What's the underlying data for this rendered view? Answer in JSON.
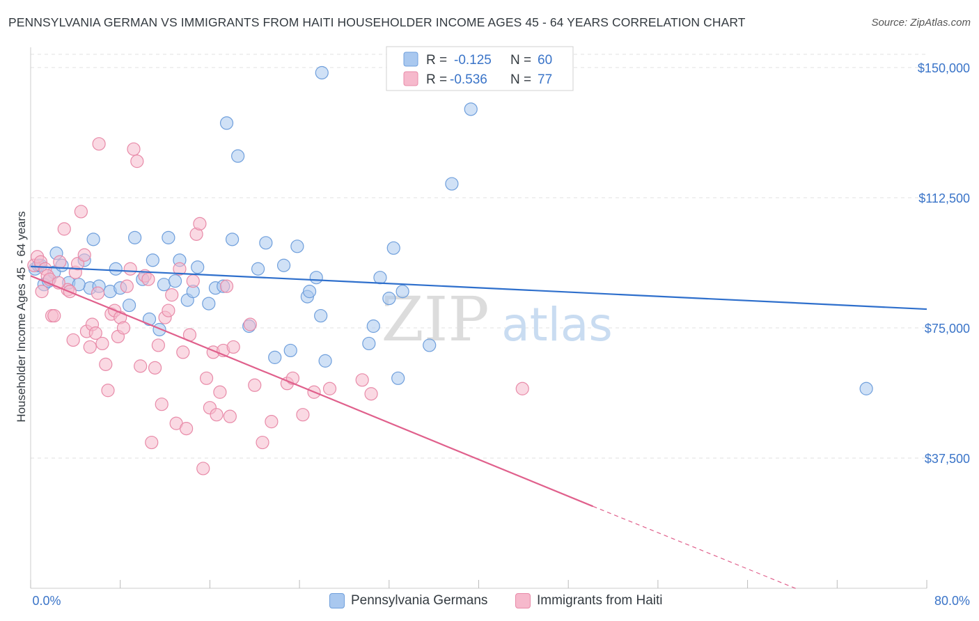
{
  "header": {
    "title": "PENNSYLVANIA GERMAN VS IMMIGRANTS FROM HAITI HOUSEHOLDER INCOME AGES 45 - 64 YEARS CORRELATION CHART",
    "source": "Source: ZipAtlas.com"
  },
  "watermark": {
    "zip": "ZIP",
    "atlas": "atlas"
  },
  "colors": {
    "blue_fill": "#a9c8ef",
    "blue_stroke": "#6f9fdc",
    "blue_line": "#2e6fcc",
    "pink_fill": "#f6b9cc",
    "pink_stroke": "#e88aa8",
    "pink_line": "#e0608c",
    "axis_text": "#3a74c8",
    "grid": "#e2e2e2"
  },
  "stats_legend": [
    {
      "r_label": "R =",
      "r_value": "-0.125",
      "n_label": "N =",
      "n_value": "60",
      "color": "blue"
    },
    {
      "r_label": "R =",
      "r_value": "-0.536",
      "n_label": "N =",
      "n_value": "77",
      "color": "pink"
    }
  ],
  "chart_data": {
    "type": "scatter",
    "title": "PENNSYLVANIA GERMAN VS IMMIGRANTS FROM HAITI HOUSEHOLDER INCOME AGES 45 - 64 YEARS CORRELATION CHART",
    "xlabel": "",
    "ylabel": "Householder Income Ages 45 - 64 years",
    "x_tick_labels": [
      "0.0%",
      "80.0%"
    ],
    "y_tick_labels": [
      "$37,500",
      "$75,000",
      "$112,500",
      "$150,000"
    ],
    "y_ticks": [
      37500,
      75000,
      112500,
      150000
    ],
    "xlim": [
      0,
      80
    ],
    "ylim": [
      0,
      155000
    ],
    "grid": true,
    "legend_position": "bottom",
    "series": [
      {
        "name": "Pennsylvania Germans",
        "color": "blue",
        "r": -0.125,
        "n": 60,
        "trend": {
          "x": [
            0,
            80
          ],
          "y": [
            92700,
            80400
          ]
        },
        "points": [
          [
            0.4,
            92000
          ],
          [
            0.7,
            93000
          ],
          [
            1.2,
            87500
          ],
          [
            1.6,
            88500
          ],
          [
            2.1,
            91000
          ],
          [
            2.3,
            96500
          ],
          [
            2.8,
            93000
          ],
          [
            3.4,
            88000
          ],
          [
            4.8,
            94500
          ],
          [
            5.3,
            86500
          ],
          [
            5.6,
            100500
          ],
          [
            6.1,
            87000
          ],
          [
            7.1,
            85500
          ],
          [
            7.6,
            92000
          ],
          [
            8.0,
            86500
          ],
          [
            8.8,
            81500
          ],
          [
            9.3,
            101000
          ],
          [
            10.0,
            89000
          ],
          [
            10.6,
            77500
          ],
          [
            10.9,
            94500
          ],
          [
            11.5,
            74500
          ],
          [
            11.9,
            87500
          ],
          [
            12.3,
            101000
          ],
          [
            12.9,
            88500
          ],
          [
            13.3,
            94500
          ],
          [
            14.0,
            83000
          ],
          [
            14.5,
            85500
          ],
          [
            14.9,
            92500
          ],
          [
            15.9,
            82000
          ],
          [
            16.5,
            86500
          ],
          [
            17.2,
            87000
          ],
          [
            17.5,
            134000
          ],
          [
            18.0,
            100500
          ],
          [
            18.5,
            124500
          ],
          [
            19.5,
            75500
          ],
          [
            20.3,
            92000
          ],
          [
            21.0,
            99500
          ],
          [
            21.8,
            66500
          ],
          [
            22.6,
            93000
          ],
          [
            23.2,
            68500
          ],
          [
            23.8,
            98500
          ],
          [
            24.7,
            84000
          ],
          [
            24.9,
            85500
          ],
          [
            25.5,
            89500
          ],
          [
            25.9,
            78500
          ],
          [
            26.0,
            148500
          ],
          [
            26.3,
            65500
          ],
          [
            30.2,
            70500
          ],
          [
            30.6,
            75500
          ],
          [
            31.2,
            89500
          ],
          [
            32.0,
            83500
          ],
          [
            32.4,
            98000
          ],
          [
            32.8,
            60500
          ],
          [
            33.2,
            85500
          ],
          [
            35.6,
            70000
          ],
          [
            37.6,
            116500
          ],
          [
            39.3,
            138000
          ],
          [
            74.6,
            57500
          ],
          [
            0.9,
            93000
          ],
          [
            4.3,
            87500
          ]
        ]
      },
      {
        "name": "Immigrants from Haiti",
        "color": "pink",
        "r": -0.536,
        "n": 77,
        "trend": {
          "x": [
            0,
            50.2
          ],
          "y": [
            90000,
            23600
          ]
        },
        "trend_dashed": {
          "x": [
            50.2,
            68.5
          ],
          "y": [
            23600,
            -300
          ]
        },
        "points": [
          [
            0.3,
            93000
          ],
          [
            0.6,
            95500
          ],
          [
            0.9,
            94000
          ],
          [
            1.0,
            85500
          ],
          [
            1.3,
            92000
          ],
          [
            1.5,
            90000
          ],
          [
            1.7,
            89000
          ],
          [
            1.9,
            78500
          ],
          [
            2.1,
            78500
          ],
          [
            2.6,
            94000
          ],
          [
            3.0,
            103500
          ],
          [
            3.3,
            86000
          ],
          [
            3.5,
            85500
          ],
          [
            3.8,
            71500
          ],
          [
            4.0,
            91000
          ],
          [
            4.2,
            93500
          ],
          [
            4.5,
            108500
          ],
          [
            4.8,
            96000
          ],
          [
            5.0,
            74000
          ],
          [
            5.3,
            69500
          ],
          [
            5.5,
            76000
          ],
          [
            5.8,
            73500
          ],
          [
            6.1,
            128000
          ],
          [
            6.4,
            70500
          ],
          [
            6.7,
            64500
          ],
          [
            6.9,
            57000
          ],
          [
            7.2,
            79000
          ],
          [
            7.5,
            80000
          ],
          [
            7.8,
            72500
          ],
          [
            8.0,
            78000
          ],
          [
            8.3,
            75000
          ],
          [
            8.6,
            87000
          ],
          [
            8.9,
            92000
          ],
          [
            9.2,
            126500
          ],
          [
            9.5,
            123000
          ],
          [
            9.8,
            64000
          ],
          [
            10.2,
            90000
          ],
          [
            10.5,
            89000
          ],
          [
            10.8,
            42000
          ],
          [
            11.1,
            63500
          ],
          [
            11.4,
            70000
          ],
          [
            11.7,
            53000
          ],
          [
            12.0,
            78000
          ],
          [
            12.3,
            80000
          ],
          [
            12.6,
            84500
          ],
          [
            13.0,
            47500
          ],
          [
            13.3,
            92000
          ],
          [
            13.6,
            68000
          ],
          [
            13.9,
            46000
          ],
          [
            14.2,
            73000
          ],
          [
            14.5,
            88500
          ],
          [
            14.8,
            102000
          ],
          [
            15.1,
            105000
          ],
          [
            15.4,
            34500
          ],
          [
            15.7,
            60500
          ],
          [
            16.0,
            52000
          ],
          [
            16.3,
            68000
          ],
          [
            16.6,
            50000
          ],
          [
            16.9,
            56500
          ],
          [
            17.2,
            68500
          ],
          [
            17.5,
            87000
          ],
          [
            17.8,
            49500
          ],
          [
            18.1,
            69500
          ],
          [
            19.6,
            76000
          ],
          [
            20.0,
            58500
          ],
          [
            20.7,
            42000
          ],
          [
            21.5,
            48000
          ],
          [
            22.9,
            59000
          ],
          [
            23.4,
            60500
          ],
          [
            24.3,
            50000
          ],
          [
            25.3,
            56500
          ],
          [
            26.7,
            57500
          ],
          [
            29.6,
            60000
          ],
          [
            30.4,
            56000
          ],
          [
            43.9,
            57500
          ],
          [
            2.5,
            88000
          ],
          [
            6.0,
            85000
          ]
        ]
      }
    ]
  }
}
